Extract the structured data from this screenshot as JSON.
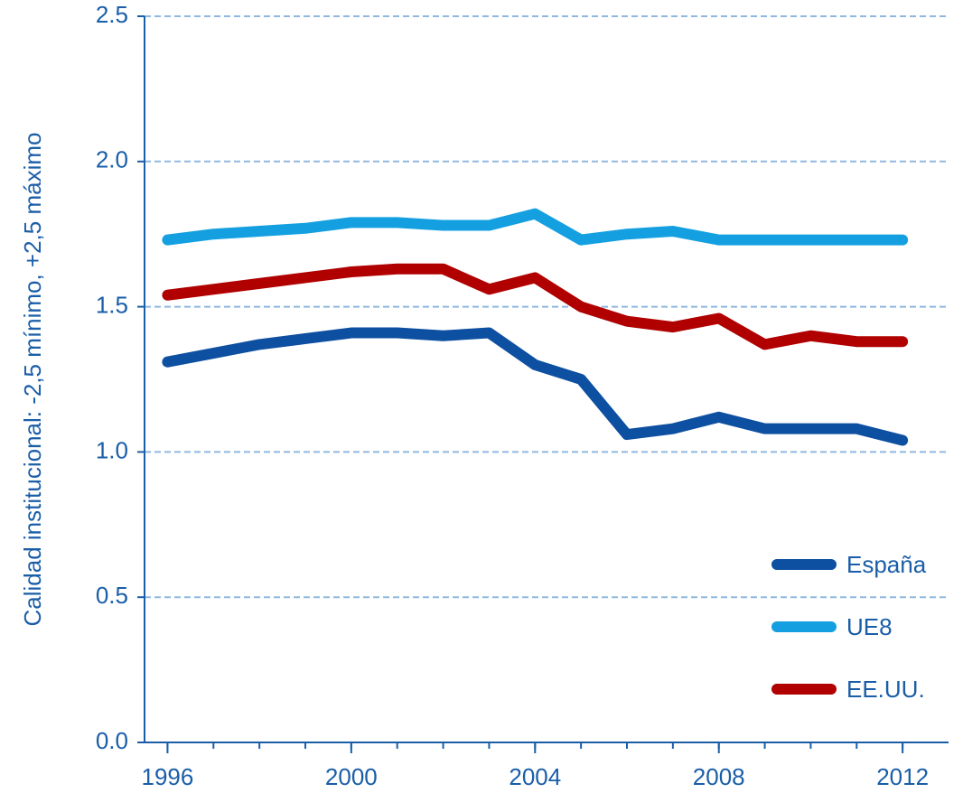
{
  "chart_data": {
    "type": "line",
    "y_label": "Calidad institucional: -2,5 mínimo, +2,5 máximo",
    "x": [
      1996,
      1997,
      1998,
      1999,
      2000,
      2001,
      2002,
      2003,
      2004,
      2005,
      2006,
      2007,
      2008,
      2009,
      2010,
      2011,
      2012
    ],
    "series": [
      {
        "name": "España",
        "color": "#0d4fa0",
        "values": [
          1.31,
          1.34,
          1.37,
          1.39,
          1.41,
          1.41,
          1.4,
          1.41,
          1.3,
          1.25,
          1.06,
          1.08,
          1.12,
          1.08,
          1.08,
          1.08,
          1.04
        ]
      },
      {
        "name": "UE8",
        "color": "#14a0e0",
        "values": [
          1.73,
          1.75,
          1.76,
          1.77,
          1.79,
          1.79,
          1.78,
          1.78,
          1.82,
          1.73,
          1.75,
          1.76,
          1.73,
          1.73,
          1.73,
          1.73,
          1.73
        ]
      },
      {
        "name": "EE.UU.",
        "color": "#b00000",
        "values": [
          1.54,
          1.56,
          1.58,
          1.6,
          1.62,
          1.63,
          1.63,
          1.56,
          1.6,
          1.5,
          1.45,
          1.43,
          1.46,
          1.37,
          1.4,
          1.38,
          1.38
        ]
      }
    ],
    "xlim": [
      1995.5,
      2013
    ],
    "xticks": [
      1996,
      2000,
      2004,
      2008,
      2012
    ],
    "ylim": [
      0,
      2.5
    ],
    "yticks": [
      {
        "value": 0,
        "label": "0.0"
      },
      0.5,
      {
        "value": 1,
        "label": "1.0"
      },
      1.5,
      {
        "value": 2,
        "label": "2.0"
      },
      2.5
    ],
    "grid": true,
    "legend": "lower right"
  }
}
